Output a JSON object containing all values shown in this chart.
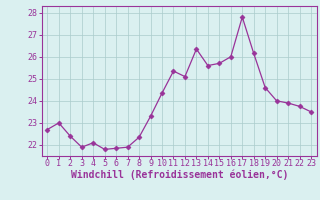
{
  "x": [
    0,
    1,
    2,
    3,
    4,
    5,
    6,
    7,
    8,
    9,
    10,
    11,
    12,
    13,
    14,
    15,
    16,
    17,
    18,
    19,
    20,
    21,
    22,
    23
  ],
  "y": [
    22.7,
    23.0,
    22.4,
    21.9,
    22.1,
    21.8,
    21.85,
    21.9,
    22.35,
    23.3,
    24.35,
    25.35,
    25.1,
    26.35,
    25.6,
    25.7,
    26.0,
    27.8,
    26.15,
    24.6,
    24.0,
    23.9,
    23.75,
    23.5
  ],
  "line_color": "#993399",
  "marker": "D",
  "marker_size": 2.5,
  "bg_color": "#daf0f0",
  "grid_color": "#aacccc",
  "spine_color": "#993399",
  "xlabel": "Windchill (Refroidissement éolien,°C)",
  "xlabel_color": "#993399",
  "xlabel_fontsize": 7,
  "tick_color": "#993399",
  "tick_fontsize": 6,
  "ylim": [
    21.5,
    28.3
  ],
  "yticks": [
    22,
    23,
    24,
    25,
    26,
    27,
    28
  ],
  "xlim": [
    -0.5,
    23.5
  ],
  "xticks": [
    0,
    1,
    2,
    3,
    4,
    5,
    6,
    7,
    8,
    9,
    10,
    11,
    12,
    13,
    14,
    15,
    16,
    17,
    18,
    19,
    20,
    21,
    22,
    23
  ]
}
